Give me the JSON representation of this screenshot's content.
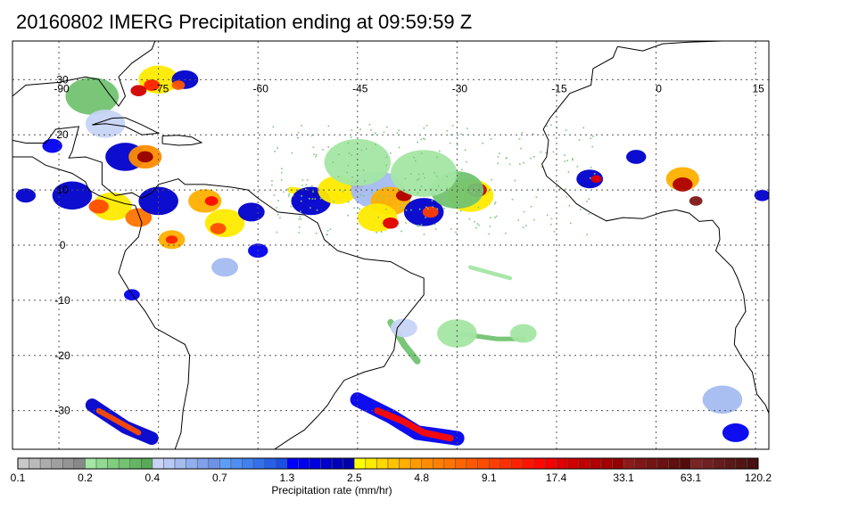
{
  "title": "20160802 IMERG Precipitation ending at 09:59:59 Z",
  "map": {
    "lon_range": [
      -97,
      17
    ],
    "lat_range": [
      -37,
      37
    ],
    "lon_ticks": [
      {
        "value": -90,
        "label": "-90"
      },
      {
        "value": -75,
        "label": "-75"
      },
      {
        "value": -60,
        "label": "-60"
      },
      {
        "value": -45,
        "label": "-45"
      },
      {
        "value": -30,
        "label": "-30"
      },
      {
        "value": -15,
        "label": "-15"
      },
      {
        "value": 0,
        "label": "0"
      },
      {
        "value": 15,
        "label": "15"
      }
    ],
    "lat_ticks": [
      {
        "value": 30,
        "label": "30"
      },
      {
        "value": 20,
        "label": "20"
      },
      {
        "value": 10,
        "label": "10"
      },
      {
        "value": 0,
        "label": "0"
      },
      {
        "value": -10,
        "label": "-10"
      },
      {
        "value": -20,
        "label": "-20"
      },
      {
        "value": -30,
        "label": "-30"
      }
    ],
    "coast_color": "#000000",
    "grid_color": "#555555",
    "precip_cells": [
      {
        "lon": -85,
        "lat": 27,
        "r": 4,
        "level": 0.3
      },
      {
        "lon": -75,
        "lat": 30,
        "r": 3,
        "level": 3
      },
      {
        "lon": -76,
        "lat": 29,
        "r": 1.2,
        "level": 12
      },
      {
        "lon": -78,
        "lat": 28,
        "r": 1.2,
        "level": 20
      },
      {
        "lon": -71,
        "lat": 30,
        "r": 2,
        "level": 2
      },
      {
        "lon": -72,
        "lat": 29,
        "r": 1,
        "level": 8
      },
      {
        "lon": -83,
        "lat": 22,
        "r": 3,
        "level": 0.4
      },
      {
        "lon": -80,
        "lat": 16,
        "r": 3,
        "level": 2
      },
      {
        "lon": -77,
        "lat": 16,
        "r": 2.5,
        "level": 5
      },
      {
        "lon": -77,
        "lat": 16,
        "r": 1.2,
        "level": 30
      },
      {
        "lon": -88,
        "lat": 9,
        "r": 3,
        "level": 2
      },
      {
        "lon": -82,
        "lat": 7,
        "r": 3,
        "level": 3
      },
      {
        "lon": -84,
        "lat": 7,
        "r": 1.5,
        "level": 9
      },
      {
        "lon": -78,
        "lat": 5,
        "r": 2,
        "level": 6
      },
      {
        "lon": -75,
        "lat": 8,
        "r": 3,
        "level": 2
      },
      {
        "lon": -68,
        "lat": 8,
        "r": 2.5,
        "level": 4
      },
      {
        "lon": -67,
        "lat": 8,
        "r": 1,
        "level": 15
      },
      {
        "lon": -65,
        "lat": 4,
        "r": 3,
        "level": 3
      },
      {
        "lon": -66,
        "lat": 3,
        "r": 1.2,
        "level": 9
      },
      {
        "lon": -73,
        "lat": 1,
        "r": 2,
        "level": 4
      },
      {
        "lon": -73,
        "lat": 1,
        "r": 0.9,
        "level": 12
      },
      {
        "lon": -61,
        "lat": 6,
        "r": 2,
        "level": 2
      },
      {
        "lon": -60,
        "lat": -1,
        "r": 1.5,
        "level": 1.5
      },
      {
        "lon": -65,
        "lat": -4,
        "r": 2,
        "level": 0.5
      },
      {
        "lon": -79,
        "lat": -9,
        "r": 1.2,
        "level": 1.5
      },
      {
        "lon": -91,
        "lat": 18,
        "r": 1.5,
        "level": 1.5
      },
      {
        "lon": -95,
        "lat": 9,
        "r": 1.5,
        "level": 2
      },
      {
        "lon": -52,
        "lat": 8,
        "r": 3,
        "level": 2
      },
      {
        "lon": -48,
        "lat": 10,
        "r": 3,
        "level": 3
      },
      {
        "lon": -45,
        "lat": 11,
        "r": 1,
        "level": 15
      },
      {
        "lon": -42,
        "lat": 10,
        "r": 4,
        "level": 0.5
      },
      {
        "lon": -40,
        "lat": 8,
        "r": 3,
        "level": 4
      },
      {
        "lon": -38,
        "lat": 9,
        "r": 1.2,
        "level": 25
      },
      {
        "lon": -42,
        "lat": 5,
        "r": 3,
        "level": 3
      },
      {
        "lon": -40,
        "lat": 4,
        "r": 1.2,
        "level": 18
      },
      {
        "lon": -35,
        "lat": 6,
        "r": 3,
        "level": 2
      },
      {
        "lon": -34,
        "lat": 6,
        "r": 1.2,
        "level": 10
      },
      {
        "lon": -28,
        "lat": 9,
        "r": 3.5,
        "level": 3
      },
      {
        "lon": -27,
        "lat": 10,
        "r": 1.5,
        "level": 20
      },
      {
        "lon": -30,
        "lat": 10,
        "r": 4,
        "level": 0.3
      },
      {
        "lon": -45,
        "lat": 15,
        "r": 5,
        "level": 0.2
      },
      {
        "lon": -35,
        "lat": 13,
        "r": 5,
        "level": 0.2
      },
      {
        "lon": -10,
        "lat": 12,
        "r": 2,
        "level": 2
      },
      {
        "lon": -9,
        "lat": 12,
        "r": 0.8,
        "level": 18
      },
      {
        "lon": -3,
        "lat": 16,
        "r": 1.5,
        "level": 2
      },
      {
        "lon": 4,
        "lat": 12,
        "r": 2.5,
        "level": 4
      },
      {
        "lon": 4,
        "lat": 11,
        "r": 1.5,
        "level": 25
      },
      {
        "lon": 6,
        "lat": 8,
        "r": 1,
        "level": 40
      },
      {
        "lon": 16,
        "lat": 9,
        "r": 1.2,
        "level": 2
      },
      {
        "lon": -38,
        "lat": -15,
        "r": 2,
        "level": 0.4
      },
      {
        "lon": -30,
        "lat": -16,
        "r": 3,
        "level": 0.2
      },
      {
        "lon": -20,
        "lat": -16,
        "r": 2,
        "level": 0.2
      },
      {
        "lon": 10,
        "lat": -28,
        "r": 3,
        "level": 0.5
      },
      {
        "lon": 12,
        "lat": -34,
        "r": 2,
        "level": 1.5
      }
    ],
    "precip_bands": [
      {
        "points": [
          [
            -85,
            -29
          ],
          [
            -80,
            -33
          ],
          [
            -76,
            -35
          ]
        ],
        "w": 2,
        "level": 2
      },
      {
        "points": [
          [
            -84,
            -30
          ],
          [
            -81,
            -32
          ],
          [
            -78,
            -34
          ]
        ],
        "w": 0.8,
        "level": 9
      },
      {
        "points": [
          [
            -45,
            -28
          ],
          [
            -40,
            -31
          ],
          [
            -36,
            -34
          ],
          [
            -30,
            -35
          ]
        ],
        "w": 2.2,
        "level": 1.5
      },
      {
        "points": [
          [
            -42,
            -30
          ],
          [
            -38,
            -32
          ],
          [
            -35,
            -34
          ],
          [
            -31,
            -35
          ]
        ],
        "w": 1,
        "level": 15
      },
      {
        "points": [
          [
            -55,
            10
          ],
          [
            -50,
            9
          ],
          [
            -45,
            9
          ]
        ],
        "w": 1,
        "level": 3
      },
      {
        "points": [
          [
            -30,
            -16
          ],
          [
            -24,
            -17
          ],
          [
            -20,
            -17
          ]
        ],
        "w": 0.7,
        "level": 0.3
      },
      {
        "points": [
          [
            -28,
            -4
          ],
          [
            -25,
            -5
          ],
          [
            -22,
            -6
          ]
        ],
        "w": 0.6,
        "level": 0.2
      },
      {
        "points": [
          [
            -40,
            -14
          ],
          [
            -38,
            -18
          ],
          [
            -36,
            -21
          ]
        ],
        "w": 1,
        "level": 0.3
      }
    ]
  },
  "colorbar": {
    "boundaries": [
      0.1,
      0.2,
      0.4,
      0.7,
      1.3,
      2.5,
      4.8,
      9.1,
      17.4,
      33.1,
      63.1,
      120.2
    ],
    "labels": [
      "0.1",
      "0.2",
      "0.4",
      "0.7",
      "1.3",
      "2.5",
      "4.8",
      "9.1",
      "17.4",
      "33.1",
      "63.1",
      "120.2"
    ],
    "segment_colors": [
      [
        "#c8c8c8",
        "#bababa",
        "#adadad",
        "#a0a0a0",
        "#949494",
        "#888888"
      ],
      [
        "#a4e6a4",
        "#8fdb8f",
        "#80cf80",
        "#72c372",
        "#64b664",
        "#58aa58"
      ],
      [
        "#c7d4f5",
        "#b6c8f3",
        "#a4bbf0",
        "#92aeee",
        "#80a0eb",
        "#6e92e8"
      ],
      [
        "#5e9df6",
        "#4f8ff4",
        "#4080f0",
        "#3370ec",
        "#2660e8",
        "#1a4fe2"
      ],
      [
        "#0000ff",
        "#0000ee",
        "#0000dd",
        "#0000cc",
        "#0000bb",
        "#0000aa"
      ],
      [
        "#ffff00",
        "#ffeb00",
        "#ffd700",
        "#ffc300",
        "#ffaf00",
        "#ff9b00"
      ],
      [
        "#ff8c00",
        "#ff8000",
        "#ff7300",
        "#ff6600",
        "#ff5900",
        "#ff4d00"
      ],
      [
        "#ff3e00",
        "#ff3000",
        "#ff2200",
        "#ff1400",
        "#ff0800",
        "#f50000"
      ],
      [
        "#e00000",
        "#d00000",
        "#c00000",
        "#b00000",
        "#a30000",
        "#960000"
      ],
      [
        "#8c1a1a",
        "#7f1717",
        "#741414",
        "#6a1111",
        "#600e0e",
        "#560b0b"
      ],
      [
        "#7a2424",
        "#702020",
        "#661c1c",
        "#5c1818",
        "#521414",
        "#481010"
      ]
    ],
    "label": "Precipitation rate (mm/hr)"
  }
}
